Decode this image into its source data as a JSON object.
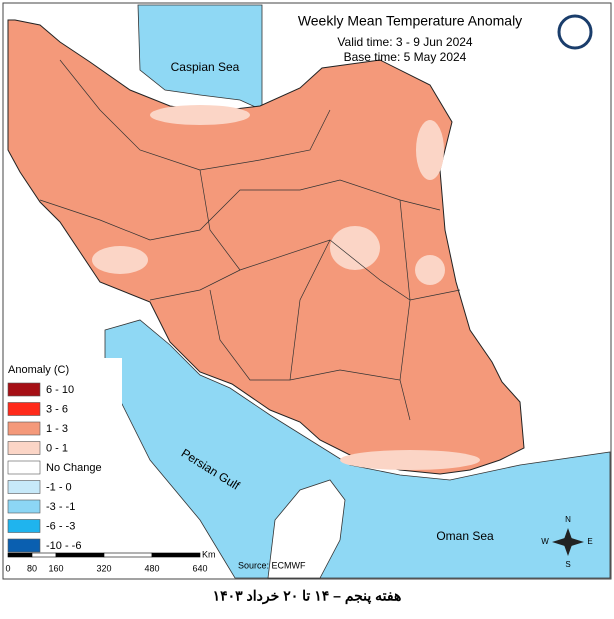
{
  "header": {
    "title": "Weekly Mean Temperature Anomaly",
    "valid_time": "Valid time: 3 - 9 Jun 2024",
    "base_time": "Base time: 5 May 2024"
  },
  "map_labels": {
    "caspian": "Caspian Sea",
    "gulf": "Persian Gulf",
    "oman": "Oman Sea"
  },
  "legend": {
    "title": "Anomaly (C)",
    "items": [
      {
        "label": "6 - 10",
        "color": "#a50f15"
      },
      {
        "label": "3 - 6",
        "color": "#ff2a1a"
      },
      {
        "label": "1 - 3",
        "color": "#f4997a"
      },
      {
        "label": "0 - 1",
        "color": "#fbd5c6"
      },
      {
        "label": "No Change",
        "color": "#ffffff"
      },
      {
        "label": "-1 - 0",
        "color": "#c7e9f9"
      },
      {
        "label": "-3 - -1",
        "color": "#8cd6f5"
      },
      {
        "label": "-6 - -3",
        "color": "#1fb4ee"
      },
      {
        "label": "-10 - -6",
        "color": "#0a5fb0"
      }
    ]
  },
  "scale": {
    "unit": "Km",
    "ticks": [
      "0",
      "80",
      "160",
      "320",
      "480",
      "640"
    ]
  },
  "source": "Source: ECMWF",
  "compass": {
    "n": "N",
    "s": "S",
    "e": "E",
    "w": "W"
  },
  "caption": "هفته پنجم – ۱۴ تا ۲۰ خرداد ۱۴۰۳"
}
